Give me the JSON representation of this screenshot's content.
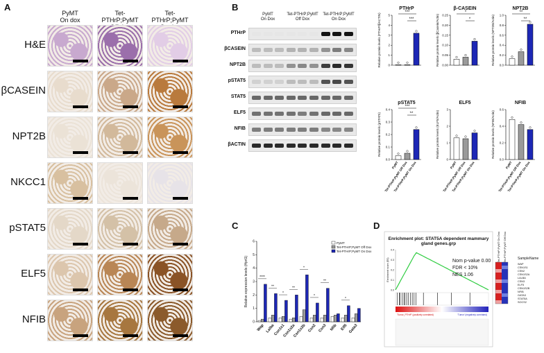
{
  "panels": {
    "a": "A",
    "b": "B",
    "c": "C",
    "d": "D"
  },
  "panel_a": {
    "columns": [
      "PyMT\nOn dox",
      "Tet-PTHrP;PyMT\nOff dox",
      "Tet-PTHrP;PyMT\nOn dox"
    ],
    "columns_split": [
      [
        "PyMT",
        "On dox"
      ],
      [
        "Tet-PTHrP;PyMT",
        "Off dox"
      ],
      [
        "Tet-PTHrP;PyMT",
        "On dox"
      ]
    ],
    "rows": [
      "H&E",
      "βCASEIN",
      "NPT2B",
      "NKCC1",
      "pSTAT5",
      "ELF5",
      "NFIB"
    ]
  },
  "panel_b": {
    "blot_columns": [
      [
        "PyMT",
        "On Dox"
      ],
      [
        "Tet-PTHrP;PyMT",
        "Off Dox"
      ],
      [
        "Tet-PTHrP;PyMT",
        "On Dox"
      ]
    ],
    "blot_rows": [
      "PTHrP",
      "βCASEIN",
      "NPT2B",
      "pSTAT5",
      "STAT5",
      "ELF5",
      "NFIB",
      "βACTIN"
    ],
    "group_labels": [
      "PyMT",
      "Tet-PTHrP;PyMT Off Dox",
      "Tet-PTHrP;PyMT On Dox"
    ]
  },
  "chart_data": [
    {
      "type": "bar",
      "title": "PTHrP",
      "ylabel": "Relative protein levels (PTHrP/βACTIN)",
      "categories": [
        "PyMT",
        "Tet-PTHrP;PyMT Off Dox",
        "Tet-PTHrP;PyMT On Dox"
      ],
      "values": [
        0.02,
        0.02,
        3.2
      ],
      "ylim": [
        0,
        5
      ],
      "yticks": [
        "0",
        "1",
        "2",
        "3",
        "4",
        "5"
      ],
      "sig": [
        "***",
        "***"
      ]
    },
    {
      "type": "bar",
      "title": "β-CASEIN",
      "ylabel": "Relative protein levels (βCasein/Actin)",
      "categories": [
        "PyMT",
        "Tet-PTHrP;PyMT Off Dox",
        "Tet-PTHrP;PyMT On Dox"
      ],
      "values": [
        0.03,
        0.04,
        0.12
      ],
      "ylim": [
        0,
        0.25
      ],
      "yticks": [
        "0.00",
        "0.05",
        "0.10",
        "0.15",
        "0.20",
        "0.25"
      ],
      "sig": [
        "*",
        "*"
      ]
    },
    {
      "type": "bar",
      "title": "NPT2B",
      "ylabel": "Relative protein levels (NPT2B/Actin)",
      "categories": [
        "PyMT",
        "Tet-PTHrP;PyMT Off Dox",
        "Tet-PTHrP;PyMT On Dox"
      ],
      "values": [
        0.13,
        0.27,
        0.82
      ],
      "ylim": [
        0,
        1.0
      ],
      "yticks": [
        "0.0",
        "0.2",
        "0.4",
        "0.6",
        "0.8",
        "1.0"
      ],
      "sig": [
        "**",
        "**"
      ]
    },
    {
      "type": "bar",
      "title": "pSTAT5",
      "ylabel": "Relative protein levels (pSTAT5)",
      "categories": [
        "PyMT",
        "Tet-PTHrP;PyMT Off Dox",
        "Tet-PTHrP;PyMT On Dox"
      ],
      "values": [
        0.03,
        0.05,
        0.24
      ],
      "ylim": [
        0,
        0.4
      ],
      "yticks": [
        "0.0",
        "0.1",
        "0.2",
        "0.3",
        "0.4"
      ],
      "sig": [
        "***",
        "**"
      ]
    },
    {
      "type": "bar",
      "title": "ELF5",
      "ylabel": "Relative protein levels (ELF5/Actin)",
      "categories": [
        "PyMT",
        "Tet-PTHrP;PyMT Off Dox",
        "Tet-PTHrP;PyMT On Dox"
      ],
      "values": [
        1.3,
        1.25,
        1.6
      ],
      "ylim": [
        0,
        3
      ],
      "yticks": [
        "0",
        "1",
        "2",
        "3"
      ],
      "sig": []
    },
    {
      "type": "bar",
      "title": "NFIB",
      "ylabel": "Relative protein levels (NFIB/Actin)",
      "categories": [
        "PyMT",
        "Tet-PTHrP;PyMT Off Dox",
        "Tet-PTHrP;PyMT On Dox"
      ],
      "values": [
        0.48,
        0.42,
        0.36
      ],
      "ylim": [
        0,
        0.6
      ],
      "yticks": [
        "0.0",
        "0.2",
        "0.4",
        "0.6"
      ],
      "sig": []
    },
    {
      "type": "bar",
      "title": "",
      "ylabel": "Relative expression levels (Hprt1)",
      "categories": [
        "Wap",
        "Lalba",
        "Csn1s1",
        "Csn1s2a",
        "Csn1s2b",
        "Csn2",
        "Csn3",
        "Nfib",
        "Elf5",
        "Gata3"
      ],
      "ylim": [
        0,
        6
      ],
      "yticks": [
        "0",
        "1",
        "2",
        "3",
        "4",
        "5",
        "6"
      ],
      "series": [
        {
          "name": "PyMT",
          "values": [
            0.1,
            0.3,
            0.3,
            0.2,
            0.4,
            0.3,
            0.3,
            0.4,
            0.3,
            0.3
          ]
        },
        {
          "name": "Tet-PTHrP;PyMT Off Dox",
          "values": [
            0.2,
            0.5,
            0.4,
            0.3,
            0.9,
            0.5,
            0.5,
            0.5,
            0.5,
            0.6
          ]
        },
        {
          "name": "Tet-PTHrP;PyMT On Dox",
          "values": [
            2.8,
            2.1,
            1.6,
            2.0,
            3.5,
            1.4,
            2.5,
            0.6,
            1.2,
            1.0
          ]
        }
      ],
      "sig": [
        "****",
        "**",
        "*",
        "**",
        "*",
        "*",
        "**",
        "",
        "*",
        ""
      ]
    }
  ],
  "panel_d": {
    "title": "Enrichment plot: STAT5A dependent mammary gland genes.grp",
    "stats": [
      "Nom p-value 0.00",
      "FDR < 10%",
      "NES 1.06"
    ],
    "ylabel": "Enrichment score (ES)",
    "yticks": [
      "0.4",
      "0.3",
      "0.2",
      "0.1",
      "0.0"
    ],
    "pos_label": "'Tumor_PTHrP' (positively correlated)",
    "neg_label": "'Tumor' (negatively correlated)",
    "heat_cols": [
      "Tet-PTHrP;PyMT On Dox",
      "Tet-PTHrP;PyMT Off Dox"
    ],
    "heat_header": "SampleName",
    "genes": [
      "WAP",
      "CSN1S1",
      "CSN2",
      "CSN1S2A",
      "LALBA",
      "CSN3",
      "ELF5",
      "CSN1S2B",
      "NFIB",
      "GATA3",
      "STAT5A",
      "SOCS2"
    ]
  }
}
